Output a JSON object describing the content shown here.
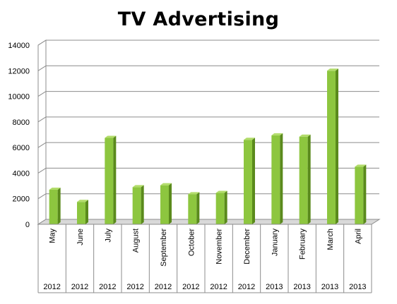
{
  "chart_data": {
    "type": "bar",
    "title": "TV Advertising",
    "categories": [
      "May",
      "June",
      "July",
      "August",
      "September",
      "October",
      "November",
      "December",
      "January",
      "February",
      "March",
      "April"
    ],
    "years": [
      "2012",
      "2012",
      "2012",
      "2012",
      "2012",
      "2012",
      "2012",
      "2012",
      "2013",
      "2013",
      "2013",
      "2013"
    ],
    "values": [
      2700,
      1750,
      6750,
      2900,
      3050,
      2350,
      2450,
      6600,
      6950,
      6850,
      12000,
      4500
    ],
    "ylim": [
      0,
      14000
    ],
    "yticks": [
      "0",
      "2000",
      "4000",
      "6000",
      "8000",
      "10000",
      "12000",
      "14000"
    ],
    "xlabel": "",
    "ylabel": "",
    "grid": true,
    "legend": "none",
    "colors": {
      "bar_front": "#8dc63f",
      "bar_side": "#5a8a1c",
      "bar_top": "#b2dc6a",
      "grid": "#8c8c8c",
      "axis": "#8c8c8c",
      "floor": "#d9d9d9"
    }
  }
}
